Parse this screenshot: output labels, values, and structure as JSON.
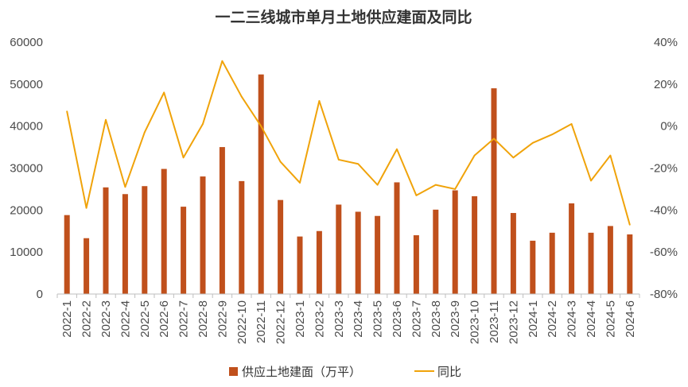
{
  "chart_data": {
    "type": "bar",
    "title": "一二三线城市单月土地供应建面及同比",
    "categories": [
      "2022-1",
      "2022-2",
      "2022-3",
      "2022-4",
      "2022-5",
      "2022-6",
      "2022-7",
      "2022-8",
      "2022-9",
      "2022-10",
      "2022-11",
      "2022-12",
      "2023-1",
      "2023-2",
      "2023-3",
      "2023-4",
      "2023-5",
      "2023-6",
      "2023-7",
      "2023-8",
      "2023-9",
      "2023-10",
      "2023-11",
      "2023-12",
      "2024-1",
      "2024-2",
      "2024-3",
      "2024-4",
      "2024-5",
      "2024-6"
    ],
    "series": [
      {
        "name": "供应土地建面（万平）",
        "type": "bar",
        "axis": "left",
        "color": "#C0501C",
        "values": [
          18800,
          13300,
          25400,
          23800,
          25700,
          29800,
          20800,
          28000,
          35000,
          26900,
          52300,
          22400,
          13700,
          15000,
          21300,
          19600,
          18600,
          26600,
          14000,
          20100,
          24700,
          23300,
          49000,
          19300,
          12700,
          14600,
          21600,
          14600,
          16200,
          14200
        ]
      },
      {
        "name": "同比",
        "type": "line",
        "axis": "right",
        "color": "#F0A30A",
        "values": [
          0.07,
          -0.39,
          0.03,
          -0.29,
          -0.03,
          0.16,
          -0.15,
          0.01,
          0.31,
          0.14,
          0.0,
          -0.17,
          -0.27,
          0.12,
          -0.16,
          -0.18,
          -0.28,
          -0.11,
          -0.33,
          -0.28,
          -0.3,
          -0.14,
          -0.06,
          -0.15,
          -0.08,
          -0.04,
          0.01,
          -0.26,
          -0.14,
          -0.47
        ]
      }
    ],
    "y_left": {
      "lim": [
        0,
        60000
      ],
      "ticks": [
        0,
        10000,
        20000,
        30000,
        40000,
        50000,
        60000
      ],
      "tick_labels": [
        "0",
        "10000",
        "20000",
        "30000",
        "40000",
        "50000",
        "60000"
      ]
    },
    "y_right": {
      "lim": [
        -0.8,
        0.4
      ],
      "ticks": [
        -0.8,
        -0.6,
        -0.4,
        -0.2,
        0,
        0.2,
        0.4
      ],
      "tick_labels": [
        "-80%",
        "-60%",
        "-40%",
        "-20%",
        "0%",
        "20%",
        "40%"
      ]
    },
    "legend": {
      "position": "bottom",
      "items": [
        "供应土地建面（万平）",
        "同比"
      ]
    },
    "grid": false
  }
}
